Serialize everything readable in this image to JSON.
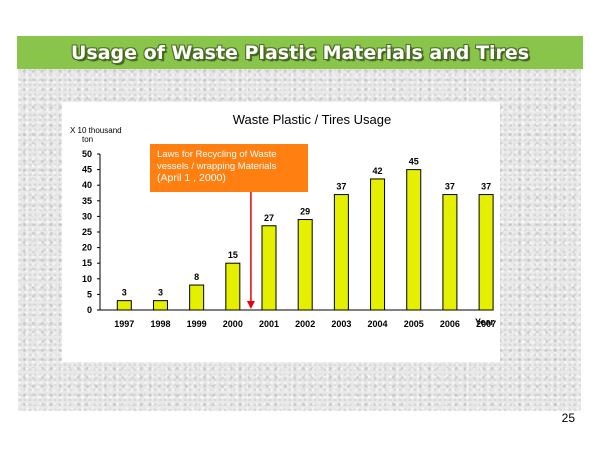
{
  "slide": {
    "title": "Usage of Waste Plastic Materials and Tires",
    "page_number": "25"
  },
  "colors": {
    "title_bar": "#8ac54b",
    "bar_fill": "#e5f000",
    "annotation_box": "#ff7f11",
    "annotation_arrow": "#e8000b"
  },
  "chart_data": {
    "type": "bar",
    "title": "Waste Plastic / Tires Usage",
    "ylabel": "X 10 thousand ton",
    "xlabel": "Year",
    "categories": [
      "1997",
      "1998",
      "1999",
      "2000",
      "2001",
      "2002",
      "2003",
      "2004",
      "2005",
      "2006",
      "2007"
    ],
    "values": [
      3,
      3,
      8,
      15,
      27,
      29,
      37,
      42,
      45,
      37,
      37
    ],
    "ylim": [
      0,
      50
    ],
    "yticks": [
      0,
      5,
      10,
      15,
      20,
      25,
      30,
      35,
      40,
      45,
      50
    ],
    "grid": false,
    "data_labels": true,
    "annotation": {
      "lines": [
        "Laws for Recycling of Waste",
        "vessels / wrapping Materials",
        "(April   1 , 2000)"
      ],
      "points_to": "2001"
    }
  }
}
